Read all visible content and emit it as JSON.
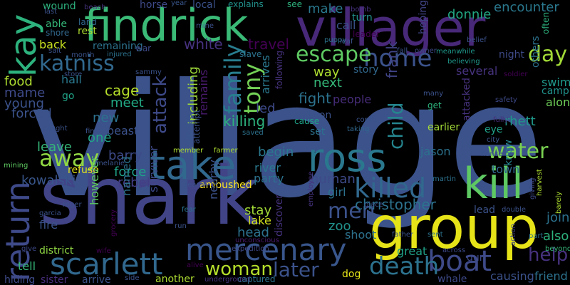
{
  "words": [
    {
      "text": "village",
      "color": "#3b528b"
    },
    {
      "text": "shark",
      "color": "#414487"
    },
    {
      "text": "group",
      "color": "#e6e419"
    },
    {
      "text": "villager",
      "color": "#482878"
    },
    {
      "text": "findrick",
      "color": "#3aba76"
    },
    {
      "text": "kill",
      "color": "#5ec962"
    },
    {
      "text": "ross",
      "color": "#2a788e"
    },
    {
      "text": "take",
      "color": "#31688e"
    },
    {
      "text": "return",
      "color": "#3e4a89"
    },
    {
      "text": "kay",
      "color": "#2db27d"
    },
    {
      "text": "mercenary",
      "color": "#39568c"
    },
    {
      "text": "scarlett",
      "color": "#31688e"
    },
    {
      "text": "home",
      "color": "#3b528b"
    },
    {
      "text": "boat",
      "color": "#3e4a89"
    },
    {
      "text": "killed",
      "color": "#31688e"
    },
    {
      "text": "death",
      "color": "#2c728e"
    },
    {
      "text": "katniss",
      "color": "#31688e"
    },
    {
      "text": "escape",
      "color": "#5ec962"
    },
    {
      "text": "away",
      "color": "#90d743"
    },
    {
      "text": "water",
      "color": "#7ad151"
    },
    {
      "text": "family",
      "color": "#287d8e"
    },
    {
      "text": "tony",
      "color": "#73d056"
    },
    {
      "text": "child",
      "color": "#25858e"
    },
    {
      "text": "day",
      "color": "#a2da37"
    },
    {
      "text": "men",
      "color": "#3b528b"
    },
    {
      "text": "woman",
      "color": "#b5de2b"
    },
    {
      "text": "later",
      "color": "#3b528b"
    },
    {
      "text": "help",
      "color": "#46327e"
    },
    {
      "text": "attack",
      "color": "#3e4a89"
    },
    {
      "text": "christopher",
      "color": "#2c728e"
    },
    {
      "text": "swim",
      "color": "#1f988b"
    },
    {
      "text": "frank",
      "color": "#414487"
    },
    {
      "text": "travel",
      "color": "#440154"
    },
    {
      "text": "white",
      "color": "#46327e"
    },
    {
      "text": "encounter",
      "color": "#2a788e"
    },
    {
      "text": "donnie",
      "color": "#22a884"
    },
    {
      "text": "make",
      "color": "#2a788e"
    },
    {
      "text": "call",
      "color": "#3b528b"
    },
    {
      "text": "turn",
      "color": "#21918c"
    },
    {
      "text": "leader",
      "color": "#440154"
    },
    {
      "text": "including",
      "color": "#9fda3a"
    },
    {
      "text": "remains",
      "color": "#481a6c"
    },
    {
      "text": "killing",
      "color": "#2db27d"
    },
    {
      "text": "led",
      "color": "#3e4a89"
    },
    {
      "text": "fight",
      "color": "#2c728e"
    },
    {
      "text": "next",
      "color": "#35b779"
    },
    {
      "text": "way",
      "color": "#addc30"
    },
    {
      "text": "story",
      "color": "#31688e"
    },
    {
      "text": "several",
      "color": "#46327e"
    },
    {
      "text": "arrives",
      "color": "#2a788e"
    },
    {
      "text": "following",
      "color": "#46327e"
    },
    {
      "text": "food",
      "color": "#addc30"
    },
    {
      "text": "mame",
      "color": "#3e4a89"
    },
    {
      "text": "young",
      "color": "#3b528b"
    },
    {
      "text": "hall",
      "color": "#2a788e"
    },
    {
      "text": "go",
      "color": "#20a386"
    },
    {
      "text": "forced",
      "color": "#3b528b"
    },
    {
      "text": "cage",
      "color": "#b5de2b"
    },
    {
      "text": "meet",
      "color": "#22a884"
    },
    {
      "text": "new",
      "color": "#2c728e"
    },
    {
      "text": "one",
      "color": "#20a386"
    },
    {
      "text": "beast",
      "color": "#3b528b"
    },
    {
      "text": "rhett",
      "color": "#1f988b"
    },
    {
      "text": "camp",
      "color": "#21918c"
    },
    {
      "text": "along",
      "color": "#6ece58"
    },
    {
      "text": "eye",
      "color": "#1fa188"
    },
    {
      "text": "earlier",
      "color": "#a2da37"
    },
    {
      "text": "leave",
      "color": "#35b779"
    },
    {
      "text": "refuse",
      "color": "#e5e419"
    },
    {
      "text": "barry",
      "color": "#3e4a89"
    },
    {
      "text": "begin",
      "color": "#2a788e"
    },
    {
      "text": "jason",
      "color": "#2c728e"
    },
    {
      "text": "town",
      "color": "#31688e"
    },
    {
      "text": "know",
      "color": "#26828e"
    },
    {
      "text": "kowalski",
      "color": "#39568c"
    },
    {
      "text": "force",
      "color": "#1fa188"
    },
    {
      "text": "rebel",
      "color": "#433e85"
    },
    {
      "text": "ambushed",
      "color": "#fde725"
    },
    {
      "text": "river",
      "color": "#2a788e"
    },
    {
      "text": "party",
      "color": "#2c728e"
    },
    {
      "text": "human",
      "color": "#3e4a89"
    },
    {
      "text": "girl",
      "color": "#2c728e"
    },
    {
      "text": "lead",
      "color": "#3b528b"
    },
    {
      "text": "join",
      "color": "#2c728e"
    },
    {
      "text": "also",
      "color": "#2db27d"
    },
    {
      "text": "fire",
      "color": "#3b528b"
    },
    {
      "text": "however",
      "color": "#5ec962"
    },
    {
      "text": "named",
      "color": "#2c728e"
    },
    {
      "text": "survivor",
      "color": "#3e4a89"
    },
    {
      "text": "nearby",
      "color": "#3b528b"
    },
    {
      "text": "head",
      "color": "#2c728e"
    },
    {
      "text": "stay",
      "color": "#a2da37"
    },
    {
      "text": "lake",
      "color": "#d2e21b"
    },
    {
      "text": "zoo",
      "color": "#21918c"
    },
    {
      "text": "shoot",
      "color": "#2c728e"
    },
    {
      "text": "district",
      "color": "#90d743"
    },
    {
      "text": "tell",
      "color": "#35b779"
    },
    {
      "text": "great",
      "color": "#1fa188"
    },
    {
      "text": "gun",
      "color": "#3e4a89"
    },
    {
      "text": "causing",
      "color": "#3b528b"
    },
    {
      "text": "friend",
      "color": "#2c728e"
    },
    {
      "text": "whale",
      "color": "#3e4a89"
    },
    {
      "text": "dog",
      "color": "#e6e419"
    },
    {
      "text": "another",
      "color": "#addc30"
    },
    {
      "text": "arrive",
      "color": "#3b528b"
    },
    {
      "text": "sister",
      "color": "#472d7b"
    },
    {
      "text": "hiding",
      "color": "#3e4a89"
    },
    {
      "text": "side",
      "color": "#3b528b"
    },
    {
      "text": "captured",
      "color": "#2c728e"
    },
    {
      "text": "underground",
      "color": "#46327e"
    },
    {
      "text": "alive",
      "color": "#440154"
    },
    {
      "text": "unconscious",
      "color": "#481a6c"
    },
    {
      "text": "discover",
      "color": "#46327e"
    },
    {
      "text": "wound",
      "color": "#2db27d"
    },
    {
      "text": "able",
      "color": "#35b779"
    },
    {
      "text": "shore",
      "color": "#31688e"
    },
    {
      "text": "back",
      "color": "#c8e020"
    },
    {
      "text": "rest",
      "color": "#addc30"
    },
    {
      "text": "land",
      "color": "#31688e"
    },
    {
      "text": "remaining",
      "color": "#2c728e"
    },
    {
      "text": "horse",
      "color": "#3e4a89"
    },
    {
      "text": "local",
      "color": "#3b528b"
    },
    {
      "text": "explains",
      "color": "#21918c"
    },
    {
      "text": "see",
      "color": "#2db27d"
    },
    {
      "text": "year",
      "color": "#39568c"
    },
    {
      "text": "beach",
      "color": "#46327e"
    },
    {
      "text": "bomb",
      "color": "#46327e"
    },
    {
      "text": "last",
      "color": "#3b528b"
    },
    {
      "text": "mine",
      "color": "#3b528b"
    },
    {
      "text": "hoping",
      "color": "#414487"
    },
    {
      "text": "others",
      "color": "#2c728e"
    },
    {
      "text": "night",
      "color": "#3e4a89"
    },
    {
      "text": "salt",
      "color": "#3b528b"
    },
    {
      "text": "month",
      "color": "#3b528b"
    },
    {
      "text": "war",
      "color": "#3e4a89"
    },
    {
      "text": "injured",
      "color": "#2c728e"
    },
    {
      "text": "slave",
      "color": "#2c728e"
    },
    {
      "text": "owner",
      "color": "#3e4a89"
    },
    {
      "text": "meanwhile",
      "color": "#1f988b"
    },
    {
      "text": "believing",
      "color": "#1f988b"
    },
    {
      "text": "soldier",
      "color": "#440154"
    },
    {
      "text": "sammy",
      "color": "#3b528b"
    },
    {
      "text": "store",
      "color": "#3b528b"
    },
    {
      "text": "people",
      "color": "#472d7b"
    },
    {
      "text": "cause",
      "color": "#1fa188"
    },
    {
      "text": "taking",
      "color": "#31688e"
    },
    {
      "text": "come",
      "color": "#3b528b"
    },
    {
      "text": "soon",
      "color": "#3b528b"
    },
    {
      "text": "set",
      "color": "#2c728e"
    },
    {
      "text": "attacked",
      "color": "#46327e"
    },
    {
      "text": "get",
      "color": "#2db27d"
    },
    {
      "text": "many",
      "color": "#3b528b"
    },
    {
      "text": "safety",
      "color": "#3e4a89"
    },
    {
      "text": "fully",
      "color": "#472d7b"
    },
    {
      "text": "city",
      "color": "#3b528b"
    },
    {
      "text": "final",
      "color": "#3b528b"
    },
    {
      "text": "caught",
      "color": "#3b528b"
    },
    {
      "text": "saved",
      "color": "#2c728e"
    },
    {
      "text": "decide",
      "color": "#39568c"
    },
    {
      "text": "attempt",
      "color": "#3b528b"
    },
    {
      "text": "member",
      "color": "#addc30"
    },
    {
      "text": "farmer",
      "color": "#addc30"
    },
    {
      "text": "mining",
      "color": "#5ec962"
    },
    {
      "text": "melanie",
      "color": "#3b528b"
    },
    {
      "text": "roger",
      "color": "#3b528b"
    },
    {
      "text": "garcia",
      "color": "#3b528b"
    },
    {
      "text": "search",
      "color": "#3b528b"
    },
    {
      "text": "fear",
      "color": "#2c728e"
    },
    {
      "text": "run",
      "color": "#3b528b"
    },
    {
      "text": "expedition",
      "color": "#3e4a89"
    },
    {
      "text": "grocery",
      "color": "#440154"
    },
    {
      "text": "employee",
      "color": "#46327e"
    },
    {
      "text": "martin",
      "color": "#2c728e"
    },
    {
      "text": "place",
      "color": "#3b528b"
    },
    {
      "text": "father",
      "color": "#3b528b"
    },
    {
      "text": "sent",
      "color": "#2c728e"
    },
    {
      "text": "across",
      "color": "#3e4a89"
    },
    {
      "text": "action",
      "color": "#414487"
    },
    {
      "text": "giving",
      "color": "#3e4a89"
    },
    {
      "text": "harvest",
      "color": "#addc30"
    },
    {
      "text": "part",
      "color": "#2c728e"
    },
    {
      "text": "double",
      "color": "#3b528b"
    },
    {
      "text": "barely",
      "color": "#addc30"
    },
    {
      "text": "beyond",
      "color": "#35b779"
    },
    {
      "text": "fiance",
      "color": "#3b528b"
    },
    {
      "text": "give",
      "color": "#3e4a89"
    },
    {
      "text": "wife",
      "color": "#440154"
    },
    {
      "text": "puppy",
      "color": "#2c728e"
    },
    {
      "text": "leaf",
      "color": "#3b528b"
    },
    {
      "text": "belief",
      "color": "#3b528b"
    },
    {
      "text": "fall",
      "color": "#3b528b"
    },
    {
      "text": "often",
      "color": "#2db27d"
    }
  ]
}
